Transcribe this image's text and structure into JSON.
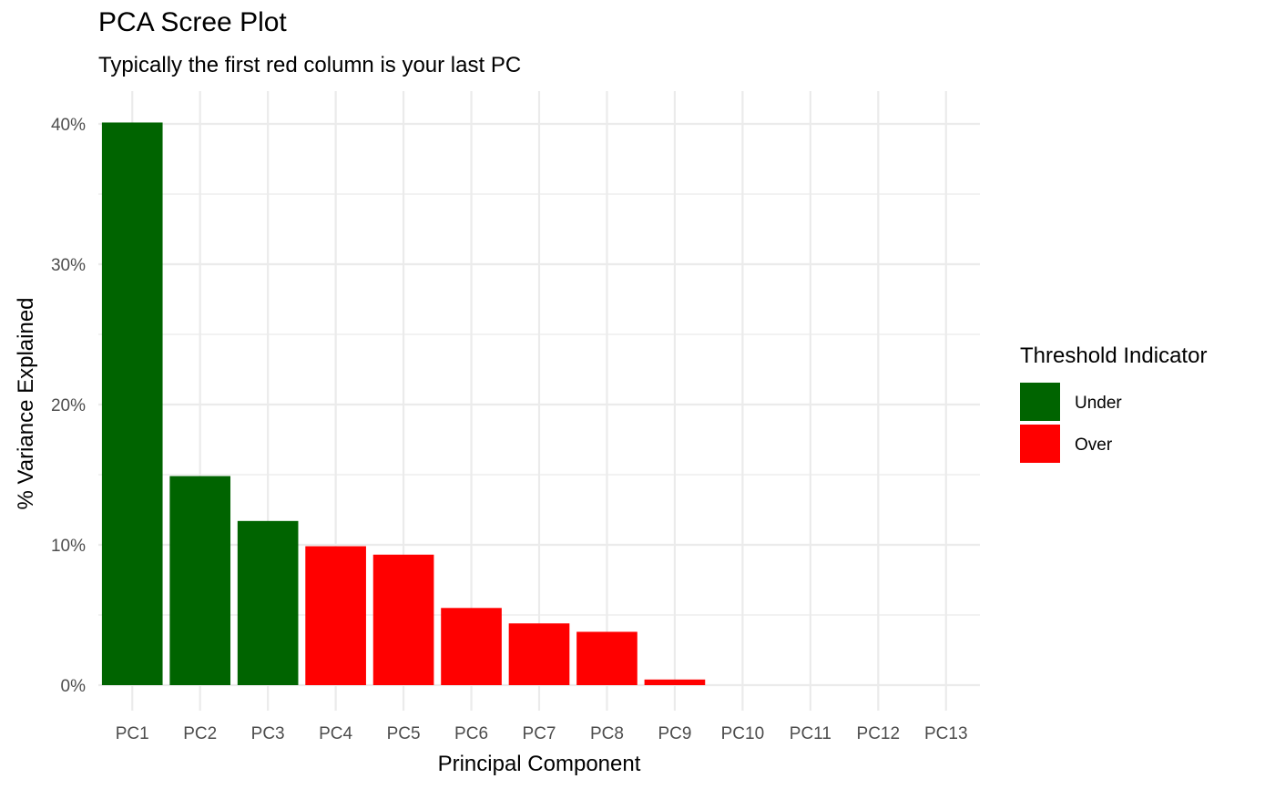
{
  "chart_data": {
    "type": "bar",
    "title": "PCA Scree Plot",
    "subtitle": "Typically the first red column is your last PC",
    "xlabel": "Principal Component",
    "ylabel": "% Variance Explained",
    "categories": [
      "PC1",
      "PC2",
      "PC3",
      "PC4",
      "PC5",
      "PC6",
      "PC7",
      "PC8",
      "PC9",
      "PC10",
      "PC11",
      "PC12",
      "PC13"
    ],
    "values": [
      40.1,
      14.9,
      11.7,
      9.9,
      9.3,
      5.5,
      4.4,
      3.8,
      0.4,
      0.0,
      0.0,
      0.0,
      0.0
    ],
    "groups": [
      "Under",
      "Under",
      "Under",
      "Over",
      "Over",
      "Over",
      "Over",
      "Over",
      "Over",
      "Over",
      "Over",
      "Over",
      "Over"
    ],
    "ylim": [
      0,
      41
    ],
    "yticks": [
      0,
      10,
      20,
      30,
      40
    ],
    "ytick_labels": [
      "0%",
      "10%",
      "20%",
      "30%",
      "40%"
    ],
    "grid": true,
    "legend": {
      "title": "Threshold Indicator",
      "position": "right",
      "entries": [
        {
          "label": "Under",
          "color": "#006400"
        },
        {
          "label": "Over",
          "color": "#ff0000"
        }
      ]
    },
    "colors": {
      "Under": "#006400",
      "Over": "#ff0000"
    }
  }
}
